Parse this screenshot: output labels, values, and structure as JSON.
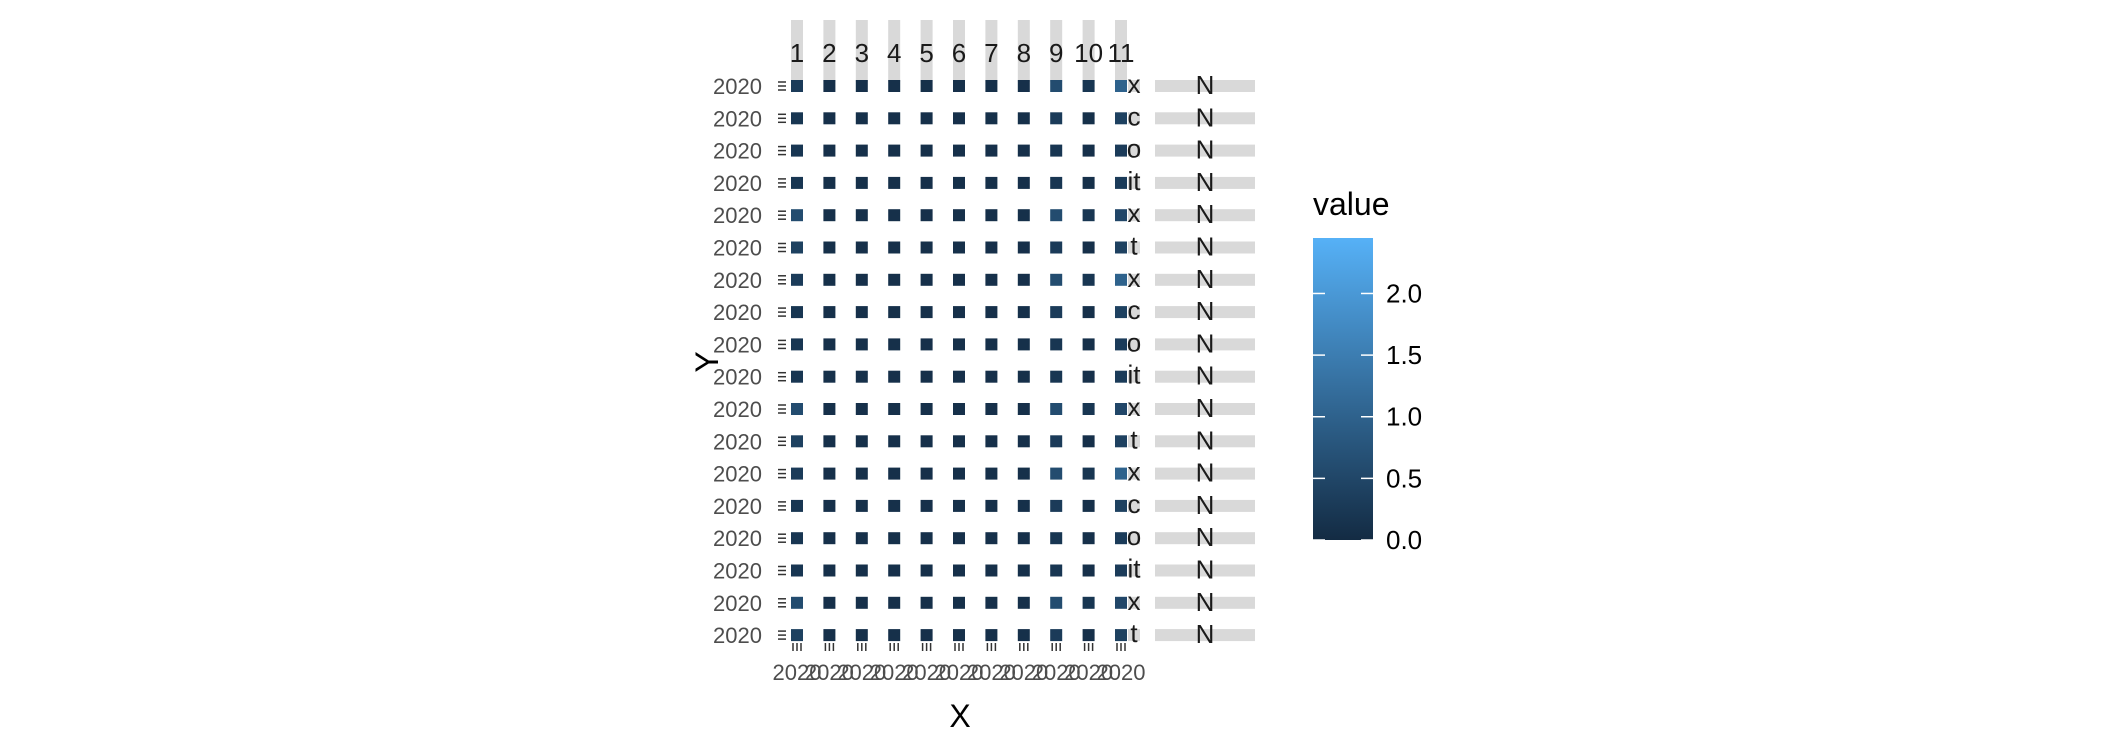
{
  "chart_data": {
    "type": "heatmap",
    "title": "",
    "xlabel": "X",
    "ylabel": "Y",
    "facet_cols": [
      "1",
      "2",
      "3",
      "4",
      "5",
      "6",
      "7",
      "8",
      "9",
      "10",
      "11"
    ],
    "facet_rows": [
      "x",
      "c",
      "o",
      "it",
      "x",
      "t",
      "x",
      "c",
      "o",
      "it",
      "x",
      "t",
      "x",
      "c",
      "o",
      "it",
      "x",
      "t"
    ],
    "facet_rows_extra": [
      "N",
      "N",
      "N",
      "N",
      "N",
      "N",
      "N",
      "N",
      "N",
      "N",
      "N",
      "N",
      "N",
      "N",
      "N",
      "N",
      "N",
      "N"
    ],
    "x_tick_label": "2020",
    "y_tick_label": "2020",
    "values": [
      [
        0.3,
        0.1,
        0.1,
        0.1,
        0.1,
        0.1,
        0.1,
        0.1,
        0.6,
        0.2,
        1.0
      ],
      [
        0.2,
        0.1,
        0.1,
        0.1,
        0.1,
        0.1,
        0.1,
        0.1,
        0.3,
        0.1,
        0.4
      ],
      [
        0.2,
        0.1,
        0.1,
        0.1,
        0.1,
        0.1,
        0.1,
        0.1,
        0.2,
        0.1,
        0.3
      ],
      [
        0.2,
        0.1,
        0.1,
        0.1,
        0.1,
        0.1,
        0.1,
        0.1,
        0.2,
        0.1,
        0.3
      ],
      [
        0.6,
        0.1,
        0.1,
        0.1,
        0.1,
        0.1,
        0.1,
        0.1,
        0.6,
        0.2,
        0.5
      ],
      [
        0.4,
        0.1,
        0.1,
        0.1,
        0.1,
        0.1,
        0.1,
        0.1,
        0.3,
        0.1,
        0.4
      ],
      [
        0.3,
        0.1,
        0.1,
        0.1,
        0.1,
        0.1,
        0.1,
        0.1,
        0.6,
        0.2,
        1.0
      ],
      [
        0.2,
        0.1,
        0.1,
        0.1,
        0.1,
        0.1,
        0.1,
        0.1,
        0.3,
        0.1,
        0.4
      ],
      [
        0.2,
        0.1,
        0.1,
        0.1,
        0.1,
        0.1,
        0.1,
        0.1,
        0.2,
        0.1,
        0.3
      ],
      [
        0.2,
        0.1,
        0.1,
        0.1,
        0.1,
        0.1,
        0.1,
        0.1,
        0.2,
        0.1,
        0.3
      ],
      [
        0.6,
        0.1,
        0.1,
        0.1,
        0.1,
        0.1,
        0.1,
        0.1,
        0.6,
        0.2,
        0.5
      ],
      [
        0.4,
        0.1,
        0.1,
        0.1,
        0.1,
        0.1,
        0.1,
        0.1,
        0.3,
        0.1,
        0.4
      ],
      [
        0.3,
        0.1,
        0.1,
        0.1,
        0.1,
        0.1,
        0.1,
        0.1,
        0.6,
        0.2,
        1.0
      ],
      [
        0.2,
        0.1,
        0.1,
        0.1,
        0.1,
        0.1,
        0.1,
        0.1,
        0.3,
        0.1,
        0.4
      ],
      [
        0.2,
        0.1,
        0.1,
        0.1,
        0.1,
        0.1,
        0.1,
        0.1,
        0.2,
        0.1,
        0.3
      ],
      [
        0.2,
        0.1,
        0.1,
        0.1,
        0.1,
        0.1,
        0.1,
        0.1,
        0.2,
        0.1,
        0.3
      ],
      [
        0.6,
        0.1,
        0.1,
        0.1,
        0.1,
        0.1,
        0.1,
        0.1,
        0.6,
        0.2,
        0.5
      ],
      [
        0.4,
        0.1,
        0.1,
        0.1,
        0.1,
        0.1,
        0.1,
        0.1,
        0.3,
        0.1,
        0.4
      ]
    ],
    "legend": {
      "title": "value",
      "breaks": [
        0.0,
        0.5,
        1.0,
        1.5,
        2.0
      ],
      "labels": [
        "0.0",
        "0.5",
        "1.0",
        "1.5",
        "2.0"
      ],
      "range": [
        0,
        2.45
      ],
      "low_color": "#132B43",
      "high_color": "#56B1F7",
      "placement": "right"
    },
    "strip_color": "#d9d9d9",
    "grid": false
  }
}
